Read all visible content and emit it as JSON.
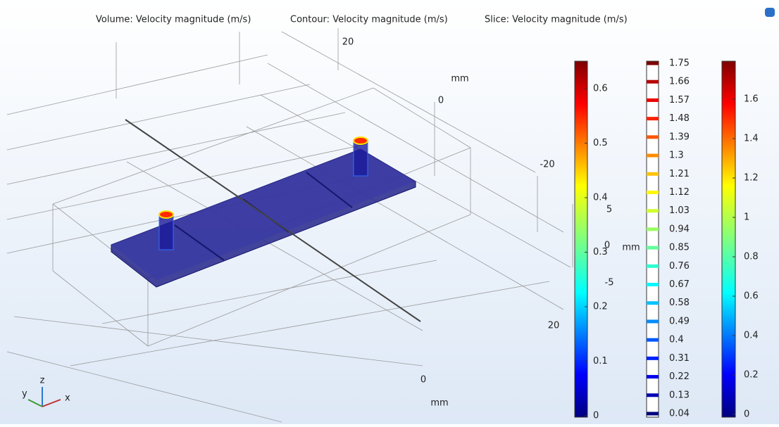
{
  "titles": [
    "Volume: Velocity magnitude (m/s)",
    "Contour: Velocity magnitude (m/s)",
    "Slice: Velocity magnitude (m/s)"
  ],
  "axis_labels": [
    "20",
    "mm",
    "0",
    "-20",
    "5",
    "0",
    "mm",
    "-5",
    "20",
    "0",
    "mm"
  ],
  "triad": [
    "z",
    "y",
    "x"
  ],
  "volume_bar": {
    "ticks": [
      "0.6",
      "0.5",
      "0.4",
      "0.3",
      "0.2",
      "0.1",
      "0"
    ]
  },
  "contour_bar": {
    "levels": [
      "1.75",
      "1.66",
      "1.57",
      "1.48",
      "1.39",
      "1.3",
      "1.21",
      "1.12",
      "1.03",
      "0.94",
      "0.85",
      "0.76",
      "0.67",
      "0.58",
      "0.49",
      "0.4",
      "0.31",
      "0.22",
      "0.13",
      "0.04"
    ]
  },
  "slice_bar": {
    "ticks": [
      "1.6",
      "1.4",
      "1.2",
      "1",
      "0.8",
      "0.6",
      "0.4",
      "0.2",
      "0"
    ]
  }
}
